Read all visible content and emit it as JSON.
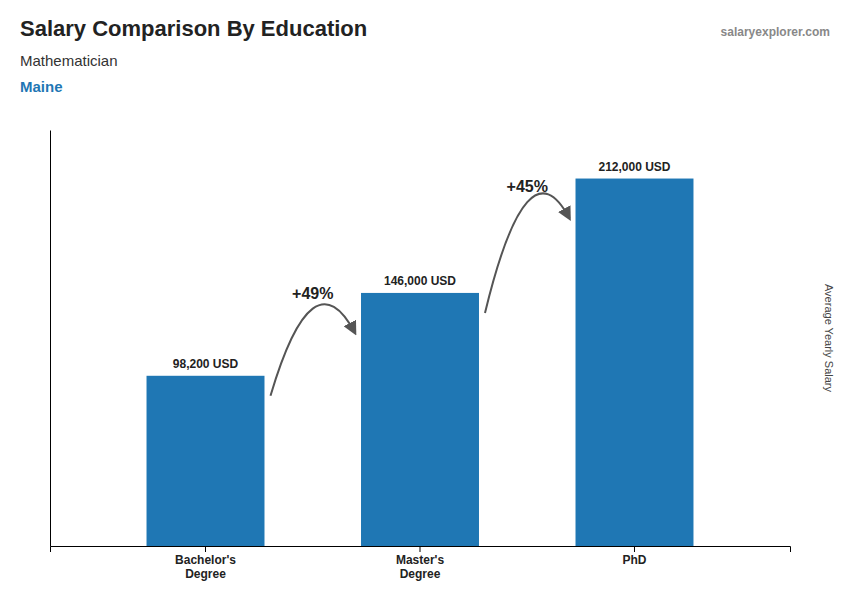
{
  "chart_data": {
    "type": "bar",
    "title": "Salary Comparison By Education",
    "subtitle": "Mathematician",
    "location": "Maine",
    "watermark": "salaryexplorer.com",
    "ylabel": "Average Yearly Salary",
    "categories": [
      "Bachelor's\nDegree",
      "Master's\nDegree",
      "PhD"
    ],
    "values": [
      98200,
      146000,
      212000
    ],
    "value_labels": [
      "98,200 USD",
      "146,000 USD",
      "212,000 USD"
    ],
    "data_labels": true,
    "annotations": [
      "+49%",
      "+45%"
    ],
    "ylim": [
      0,
      240000
    ],
    "tick_labels": "x",
    "grid": false
  }
}
